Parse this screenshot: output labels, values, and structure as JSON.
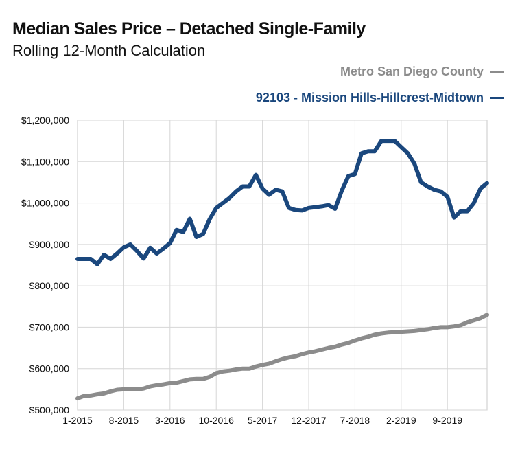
{
  "chart_data": {
    "type": "line",
    "title": "Median Sales Price – Detached Single-Family",
    "subtitle": "Rolling 12-Month Calculation",
    "ylim": [
      500000,
      1200000
    ],
    "yticks": [
      500000,
      600000,
      700000,
      800000,
      900000,
      1000000,
      1100000,
      1200000
    ],
    "ytick_labels": [
      "$500,000",
      "$600,000",
      "$700,000",
      "$800,000",
      "$900,000",
      "$1,000,000",
      "$1,100,000",
      "$1,200,000"
    ],
    "xtick_labels": [
      "1-2015",
      "8-2015",
      "3-2016",
      "10-2016",
      "5-2017",
      "12-2017",
      "7-2018",
      "2-2019",
      "9-2019"
    ],
    "x": [
      "1-2015",
      "2-2015",
      "3-2015",
      "4-2015",
      "5-2015",
      "6-2015",
      "7-2015",
      "8-2015",
      "9-2015",
      "10-2015",
      "11-2015",
      "12-2015",
      "1-2016",
      "2-2016",
      "3-2016",
      "4-2016",
      "5-2016",
      "6-2016",
      "7-2016",
      "8-2016",
      "9-2016",
      "10-2016",
      "11-2016",
      "12-2016",
      "1-2017",
      "2-2017",
      "3-2017",
      "4-2017",
      "5-2017",
      "6-2017",
      "7-2017",
      "8-2017",
      "9-2017",
      "10-2017",
      "11-2017",
      "12-2017",
      "1-2018",
      "2-2018",
      "3-2018",
      "4-2018",
      "5-2018",
      "6-2018",
      "7-2018",
      "8-2018",
      "9-2018",
      "10-2018",
      "11-2018",
      "12-2018",
      "1-2019",
      "2-2019",
      "3-2019",
      "4-2019",
      "5-2019",
      "6-2019",
      "7-2019",
      "8-2019",
      "9-2019",
      "10-2019",
      "11-2019",
      "12-2019",
      "1-2020",
      "2-2020",
      "3-2020"
    ],
    "grid": true,
    "legend_position": "top-right",
    "series": [
      {
        "name": "Metro San Diego County",
        "color": "#8c8c8c",
        "values": [
          528000,
          534000,
          535000,
          538000,
          540000,
          545000,
          549000,
          550000,
          550000,
          550000,
          552000,
          557000,
          560000,
          562000,
          565000,
          566000,
          570000,
          574000,
          575000,
          575000,
          580000,
          589000,
          593000,
          595000,
          598000,
          600000,
          600000,
          605000,
          609000,
          612000,
          618000,
          623000,
          627000,
          630000,
          635000,
          639000,
          642000,
          646000,
          650000,
          653000,
          658000,
          662000,
          668000,
          673000,
          677000,
          682000,
          685000,
          687000,
          688000,
          689000,
          690000,
          691000,
          693000,
          695000,
          698000,
          700000,
          700000,
          702000,
          705000,
          712000,
          717000,
          722000,
          730000
        ]
      },
      {
        "name": "92103 - Mission Hills-Hillcrest-Midtown",
        "color": "#1a477d",
        "values": [
          865000,
          865000,
          865000,
          852000,
          875000,
          865000,
          878000,
          893000,
          900000,
          884000,
          866000,
          892000,
          878000,
          890000,
          903000,
          935000,
          930000,
          962000,
          918000,
          925000,
          961000,
          988000,
          1000000,
          1012000,
          1028000,
          1040000,
          1040000,
          1068000,
          1035000,
          1020000,
          1032000,
          1028000,
          988000,
          983000,
          982000,
          988000,
          990000,
          992000,
          995000,
          986000,
          1030000,
          1065000,
          1070000,
          1120000,
          1125000,
          1125000,
          1150000,
          1150000,
          1150000,
          1135000,
          1120000,
          1095000,
          1050000,
          1040000,
          1032000,
          1028000,
          1015000,
          965000,
          980000,
          980000,
          1000000,
          1035000,
          1048000
        ]
      }
    ]
  }
}
